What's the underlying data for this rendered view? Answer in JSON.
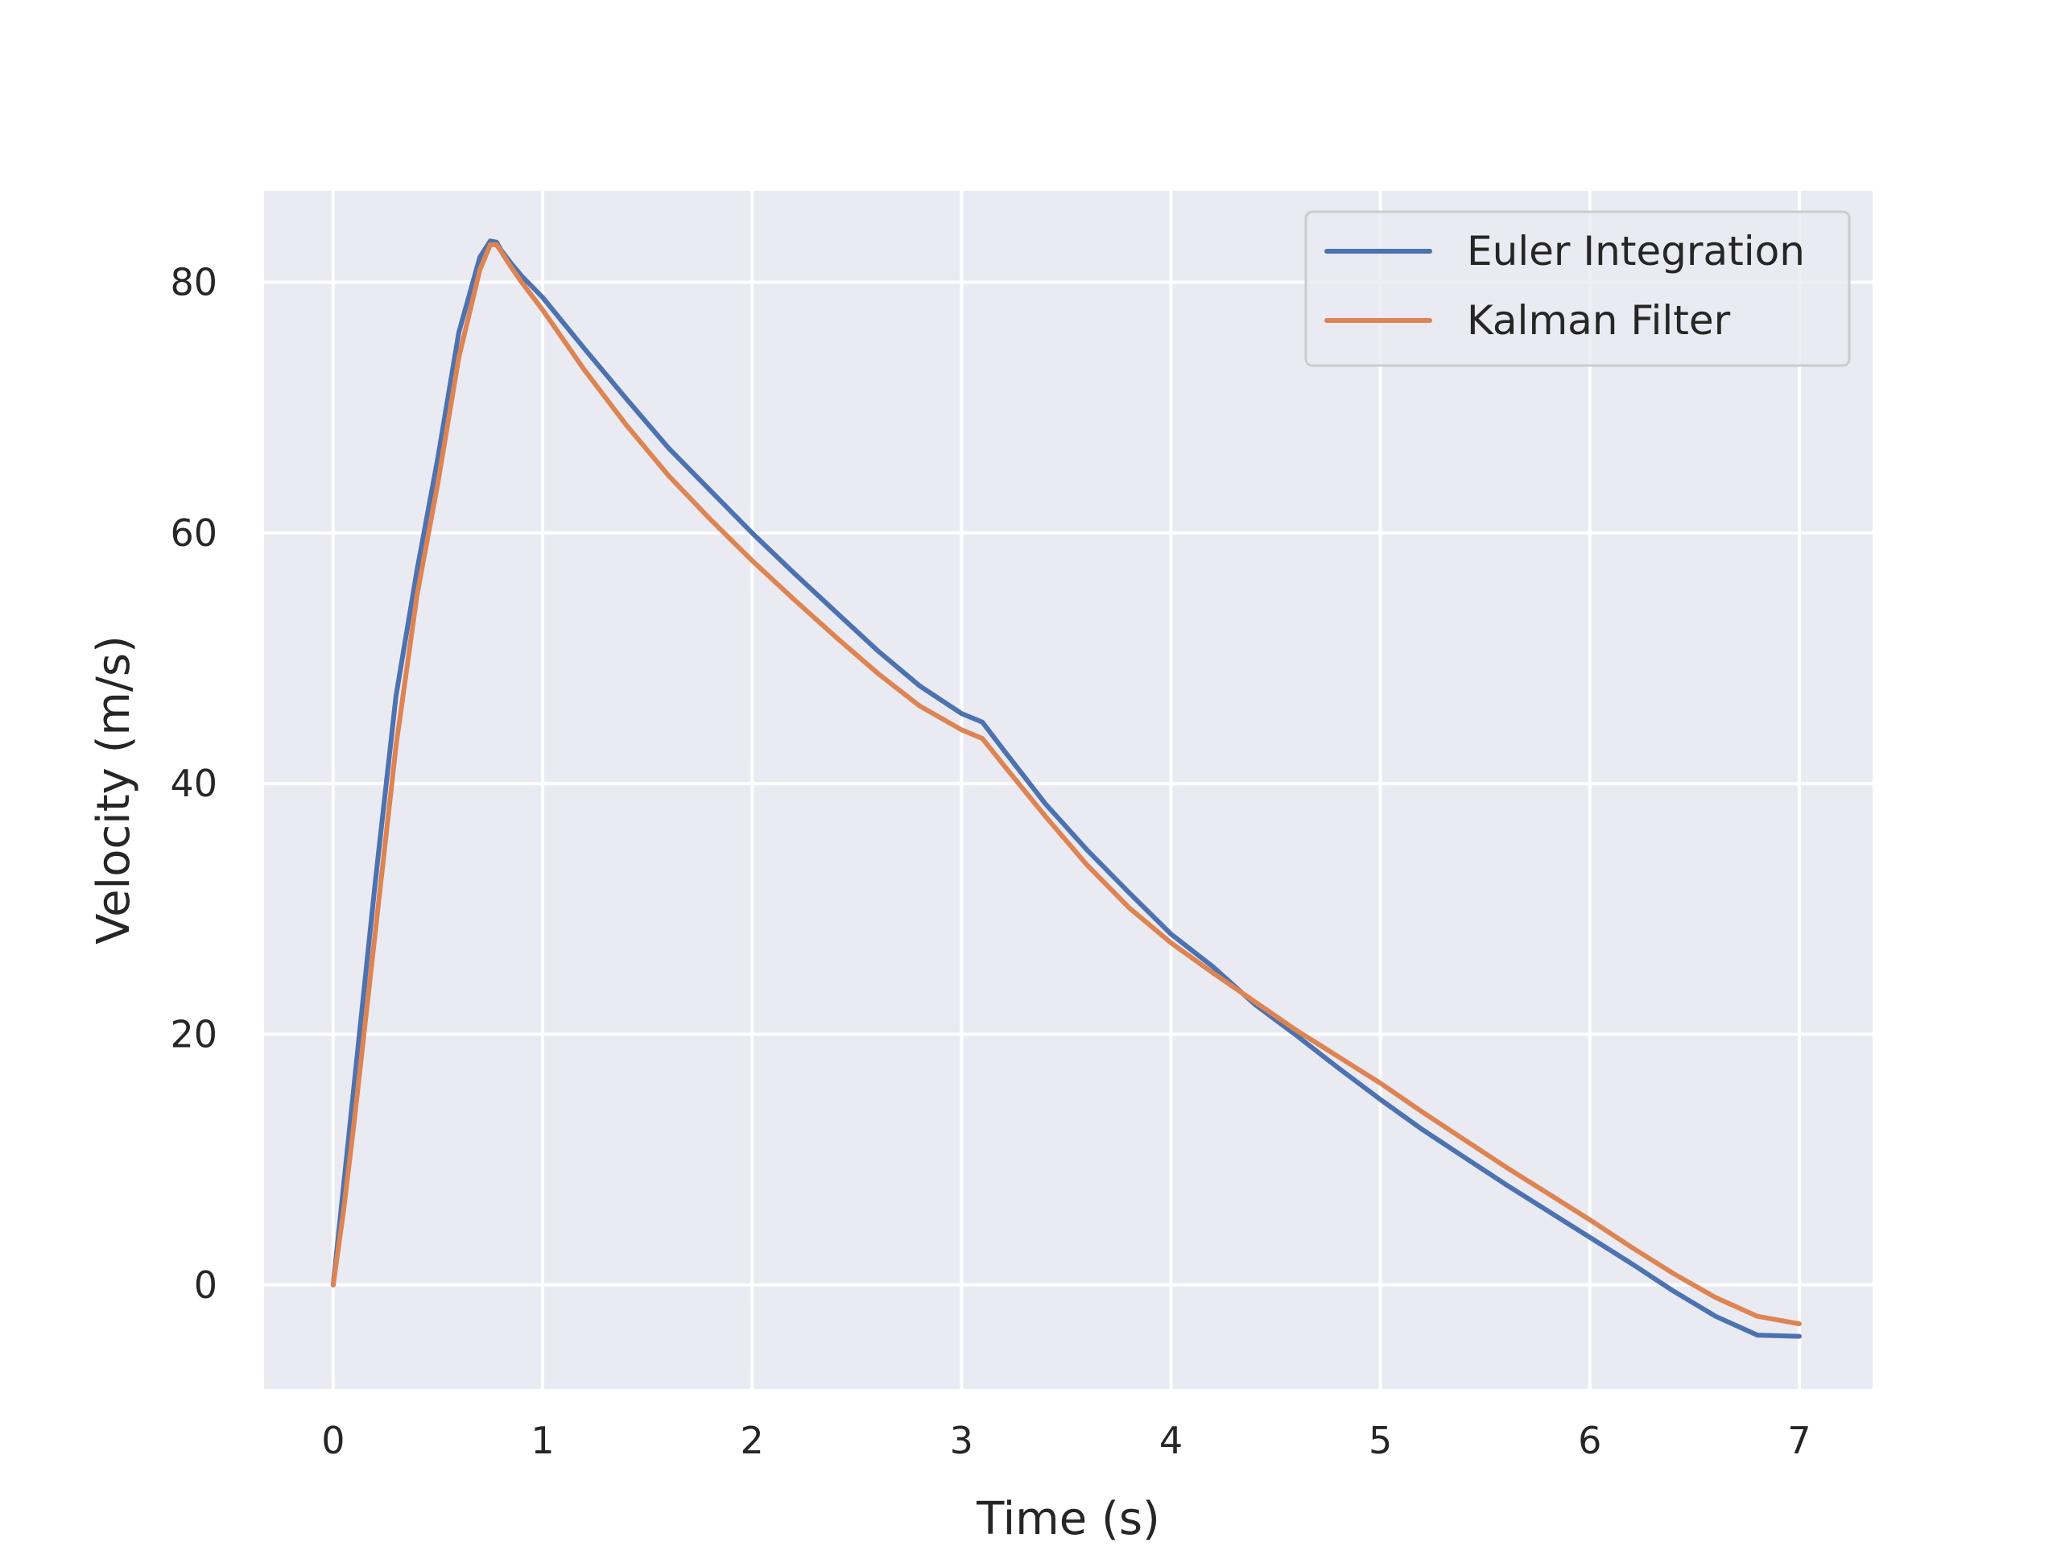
{
  "chart_data": {
    "type": "line",
    "title": "",
    "xlabel": "Time (s)",
    "ylabel": "Velocity (m/s)",
    "xlim": [
      -0.33,
      7.35
    ],
    "ylim": [
      -8.3,
      87.3
    ],
    "xticks": [
      0,
      1,
      2,
      3,
      4,
      5,
      6,
      7
    ],
    "yticks": [
      0,
      20,
      40,
      60,
      80
    ],
    "grid": true,
    "legend_position": "top-right",
    "series": [
      {
        "name": "Euler Integration",
        "color": "#4c72b0",
        "x": [
          0,
          0.05,
          0.1,
          0.2,
          0.3,
          0.4,
          0.5,
          0.6,
          0.7,
          0.75,
          0.78,
          0.8,
          0.85,
          0.9,
          1.0,
          1.2,
          1.4,
          1.6,
          1.8,
          2.0,
          2.2,
          2.4,
          2.6,
          2.8,
          3.0,
          3.1,
          3.2,
          3.4,
          3.6,
          3.8,
          4.0,
          4.2,
          4.4,
          4.6,
          4.8,
          5.0,
          5.2,
          5.4,
          5.6,
          5.8,
          6.0,
          6.2,
          6.4,
          6.6,
          6.8,
          7.0
        ],
        "y": [
          0,
          8,
          16,
          32,
          47,
          57,
          66,
          76,
          82,
          83.3,
          83.2,
          82.6,
          81.5,
          80.5,
          78.8,
          74.7,
          70.7,
          66.8,
          63.4,
          60.0,
          56.8,
          53.7,
          50.6,
          47.8,
          45.6,
          44.9,
          42.7,
          38.4,
          34.7,
          31.3,
          28.0,
          25.4,
          22.4,
          19.9,
          17.3,
          14.8,
          12.4,
          10.2,
          8.0,
          5.9,
          3.8,
          1.7,
          -0.5,
          -2.5,
          -4.0,
          -4.1
        ]
      },
      {
        "name": "Kalman Filter",
        "color": "#dd8452",
        "x": [
          0,
          0.05,
          0.1,
          0.2,
          0.3,
          0.4,
          0.5,
          0.6,
          0.7,
          0.75,
          0.78,
          0.8,
          0.85,
          0.9,
          1.0,
          1.2,
          1.4,
          1.6,
          1.8,
          2.0,
          2.2,
          2.4,
          2.6,
          2.8,
          3.0,
          3.1,
          3.2,
          3.4,
          3.6,
          3.8,
          4.0,
          4.2,
          4.4,
          4.6,
          4.8,
          5.0,
          5.2,
          5.4,
          5.6,
          5.8,
          6.0,
          6.2,
          6.4,
          6.6,
          6.8,
          7.0
        ],
        "y": [
          0,
          6,
          13,
          28,
          43,
          55,
          64,
          74,
          81,
          83.0,
          83.0,
          82.5,
          81.2,
          80.0,
          77.8,
          73.0,
          68.6,
          64.6,
          61.1,
          57.8,
          54.7,
          51.7,
          48.8,
          46.2,
          44.3,
          43.6,
          41.5,
          37.4,
          33.5,
          30.1,
          27.3,
          24.9,
          22.6,
          20.3,
          18.2,
          16.1,
          13.8,
          11.6,
          9.4,
          7.3,
          5.2,
          3.0,
          0.9,
          -1.0,
          -2.5,
          -3.1
        ]
      }
    ]
  }
}
